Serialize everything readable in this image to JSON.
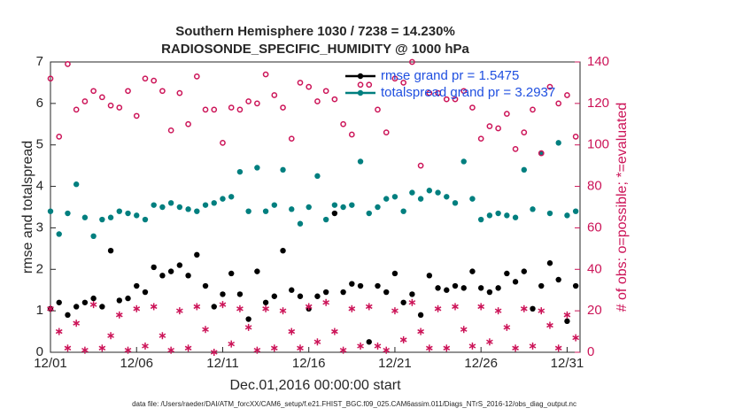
{
  "chart_data": {
    "type": "scatter",
    "title": [
      "Southern Hemisphere 1030 / 7238 = 14.230%",
      "RADIOSONDE_SPECIFIC_HUMIDITY @ 1000 hPa"
    ],
    "xlabel": "Dec.01,2016 00:00:00 start",
    "ylabel": "rmse and totalspread",
    "y2label": "# of obs: o=possible; *=evaluated",
    "footer": "data file: /Users/raeder/DAI/ATM_forcXX/CAM6_setup/f.e21.FHIST_BGC.f09_025.CAM6assim.011/Diags_NTrS_2016-12/obs_diag_output.nc",
    "legend": "upper right",
    "xlim": [
      0,
      30.75
    ],
    "xticks": [
      {
        "value": 0,
        "label": "12/01"
      },
      {
        "value": 5,
        "label": "12/06"
      },
      {
        "value": 10,
        "label": "12/11"
      },
      {
        "value": 15,
        "label": "12/16"
      },
      {
        "value": 20,
        "label": "12/21"
      },
      {
        "value": 25,
        "label": "12/26"
      },
      {
        "value": 30,
        "label": "12/31"
      }
    ],
    "ylim": [
      0,
      7
    ],
    "yticks": [
      0,
      1,
      2,
      3,
      4,
      5,
      6,
      7
    ],
    "y2lim": [
      0,
      140
    ],
    "y2ticks": [
      0,
      20,
      40,
      60,
      80,
      100,
      120,
      140
    ],
    "x": [
      0,
      0.5,
      1,
      1.5,
      2,
      2.5,
      3,
      3.5,
      4,
      4.5,
      5,
      5.5,
      6,
      6.5,
      7,
      7.5,
      8,
      8.5,
      9,
      9.5,
      10,
      10.5,
      11,
      11.5,
      12,
      12.5,
      13,
      13.5,
      14,
      14.5,
      15,
      15.5,
      16,
      16.5,
      17,
      17.5,
      18,
      18.5,
      19,
      19.5,
      20,
      20.5,
      21,
      21.5,
      22,
      22.5,
      23,
      23.5,
      24,
      24.5,
      25,
      25.5,
      26,
      26.5,
      27,
      27.5,
      28,
      28.5,
      29,
      29.5,
      30,
      30.5
    ],
    "series": [
      {
        "name": "rmse grand pr = 1.5475",
        "color": "#000000",
        "marker": "dot",
        "values": [
          1.05,
          1.2,
          0.9,
          1.1,
          1.2,
          1.3,
          1.1,
          2.45,
          1.25,
          1.3,
          1.6,
          1.45,
          2.05,
          1.85,
          1.95,
          2.1,
          1.85,
          2.35,
          1.6,
          1.1,
          1.4,
          1.9,
          1.4,
          0.8,
          1.95,
          1.2,
          1.35,
          2.45,
          1.5,
          1.35,
          1.05,
          1.35,
          1.45,
          3.35,
          1.45,
          1.65,
          1.6,
          0.25,
          1.6,
          1.45,
          1.9,
          1.2,
          1.4,
          0.9,
          1.85,
          1.55,
          1.5,
          1.6,
          1.55,
          1.95,
          1.55,
          1.45,
          1.55,
          1.9,
          1.7,
          1.95,
          1.05,
          1.6,
          2.15,
          1.75,
          0.75,
          1.6
        ]
      },
      {
        "name": "totalspread grand pr = 3.2937",
        "color": "#007f7f",
        "marker": "dot",
        "values": [
          3.4,
          2.85,
          3.35,
          4.05,
          3.25,
          2.8,
          3.2,
          3.25,
          3.4,
          3.35,
          3.3,
          3.2,
          3.55,
          3.5,
          3.6,
          3.5,
          3.45,
          3.4,
          3.55,
          3.6,
          3.7,
          3.75,
          4.35,
          3.4,
          4.45,
          3.4,
          3.55,
          4.4,
          3.45,
          3.1,
          3.5,
          4.25,
          3.2,
          3.55,
          3.5,
          3.55,
          4.6,
          3.35,
          3.5,
          3.7,
          3.75,
          3.4,
          3.85,
          3.7,
          3.9,
          3.85,
          3.75,
          3.6,
          4.6,
          3.7,
          3.2,
          3.3,
          3.35,
          3.3,
          3.25,
          4.4,
          3.45,
          4.8,
          3.35,
          5.05,
          3.3,
          3.4
        ]
      },
      {
        "color": "#cc1458",
        "marker": "circle",
        "axis": "y2",
        "values": [
          132,
          104,
          139,
          117,
          121,
          126,
          123,
          119,
          118,
          126,
          114,
          132,
          131,
          126,
          107,
          125,
          110,
          133,
          117,
          117,
          101,
          118,
          117,
          121,
          120,
          134,
          124,
          118,
          103,
          130,
          128,
          121,
          126,
          122,
          110,
          105,
          129,
          129,
          117,
          106,
          132,
          130,
          140,
          90,
          125,
          125,
          122,
          122,
          126,
          118,
          103,
          109,
          108,
          115,
          98,
          106,
          117,
          96,
          128,
          120,
          124,
          104
        ]
      },
      {
        "color": "#cc1458",
        "marker": "star",
        "axis": "y2",
        "values": [
          21,
          10,
          2,
          14,
          1,
          23,
          2,
          8,
          18,
          1,
          21,
          3,
          22,
          8,
          1,
          20,
          2,
          22,
          11,
          0,
          23,
          4,
          21,
          12,
          1,
          21,
          2,
          20,
          10,
          2,
          22,
          5,
          24,
          10,
          1,
          21,
          3,
          22,
          3,
          1,
          20,
          6,
          24,
          10,
          2,
          21,
          2,
          22,
          11,
          3,
          22,
          5,
          20,
          12,
          2,
          21,
          3,
          20,
          13,
          2,
          18,
          7
        ]
      }
    ]
  }
}
